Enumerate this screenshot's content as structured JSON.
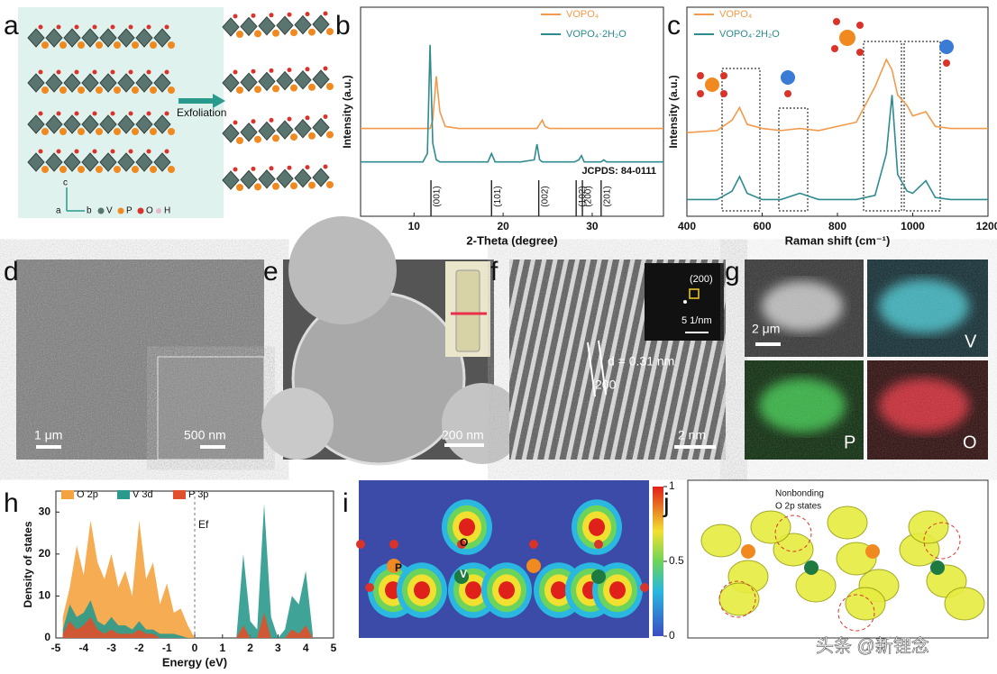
{
  "panels": {
    "a": {
      "letter": "a",
      "arrow": "Exfoliation",
      "axes": [
        "c",
        "a",
        "b"
      ],
      "legend": [
        "V",
        "P",
        "O",
        "H"
      ]
    },
    "b": {
      "letter": "b"
    },
    "c": {
      "letter": "c"
    },
    "d": {
      "letter": "d",
      "scale": "1 μm",
      "inset_scale": "500 nm"
    },
    "e": {
      "letter": "e",
      "scale": "200 nm"
    },
    "f": {
      "letter": "f",
      "fft_spot": "(200)",
      "fft_scale": "5 1/nm",
      "spacing": "d = 0.31 nm",
      "plane": "200",
      "scale": "2 nm"
    },
    "g": {
      "letter": "g",
      "scale": "2 μm",
      "maps": [
        "V",
        "P",
        "O"
      ]
    },
    "h": {
      "letter": "h"
    },
    "i": {
      "letter": "i",
      "atoms": [
        "P",
        "V",
        "O"
      ],
      "colorbar": {
        "ticks": [
          1,
          0.5,
          0
        ]
      }
    },
    "j": {
      "letter": "j",
      "note": [
        "Nonbonding",
        "O 2p states"
      ]
    }
  },
  "chart_data": [
    {
      "type": "line",
      "xlabel": "2-Theta (degree)",
      "ylabel": "Intensity (a.u.)",
      "xlim": [
        4,
        38
      ],
      "xticks": [
        10,
        20,
        30
      ],
      "ylim": [
        0,
        100
      ],
      "x": [
        4,
        10,
        11,
        11.5,
        11.8,
        12.1,
        12.5,
        12.9,
        13.5,
        15,
        18.3,
        18.7,
        19.1,
        22,
        23.5,
        23.8,
        24.1,
        24.4,
        24.7,
        25.2,
        28,
        28.5,
        28.8,
        29.1,
        31,
        31.3,
        31.6,
        38
      ],
      "series": [
        {
          "name": "VOPO₄",
          "color": "#f39a4a",
          "values": [
            42,
            42,
            42,
            42,
            42,
            46,
            67,
            50,
            43,
            42,
            42,
            42,
            42,
            42,
            42,
            42,
            44,
            46,
            43,
            42,
            42,
            42,
            42,
            42,
            42,
            42,
            42,
            42
          ]
        },
        {
          "name": "VOPO₄·2H₂O",
          "color": "#2e8b8f",
          "values": [
            26,
            26,
            26,
            30,
            82,
            35,
            27,
            26,
            26,
            26,
            26,
            30,
            26,
            26,
            27,
            34.5,
            27,
            26,
            26,
            26,
            26,
            27,
            29,
            26,
            26,
            27,
            26,
            26
          ]
        }
      ],
      "reference": {
        "label": "JCPDS: 84-0111",
        "positions": [
          11.9,
          18.7,
          24,
          28.2,
          28.9,
          31
        ],
        "labels": [
          "(001)",
          "(101)",
          "(002)",
          "(102)",
          "(200)",
          "(201)"
        ]
      }
    },
    {
      "type": "line",
      "xlabel": "Raman shift (cm⁻¹)",
      "ylabel": "Intensity (a.u.)",
      "xlim": [
        400,
        1200
      ],
      "xticks": [
        400,
        600,
        800,
        1000,
        1200
      ],
      "ylim": [
        0,
        100
      ],
      "x": [
        400,
        480,
        520,
        540,
        560,
        600,
        650,
        700,
        750,
        850,
        900,
        930,
        945,
        960,
        985,
        1000,
        1035,
        1060,
        1100,
        1200
      ],
      "series": [
        {
          "name": "VOPO₄",
          "color": "#f39a4a",
          "values": [
            40,
            41,
            46,
            52,
            44,
            42,
            41,
            42,
            41,
            45,
            62,
            75,
            70,
            58,
            53,
            48,
            50,
            43,
            42,
            42
          ]
        },
        {
          "name": "VOPO₄·2H₂O",
          "color": "#2e8b8f",
          "values": [
            8,
            8,
            12,
            19,
            11,
            8,
            8,
            11,
            8,
            8,
            10,
            30,
            58,
            20,
            12,
            11,
            17,
            9,
            8,
            8
          ]
        }
      ]
    },
    {
      "type": "area",
      "xlabel": "Energy (eV)",
      "ylabel": "Density of states",
      "annotation": "Ef",
      "xlim": [
        -5,
        5
      ],
      "xticks": [
        -5,
        -4,
        -3,
        -2,
        -1,
        0,
        1,
        2,
        3,
        4,
        5
      ],
      "ylim": [
        0,
        35
      ],
      "yticks": [
        0,
        10,
        20,
        30
      ],
      "x": [
        -4.75,
        -4.5,
        -4.25,
        -4,
        -3.75,
        -3.5,
        -3.25,
        -3,
        -2.75,
        -2.5,
        -2.25,
        -2,
        -1.75,
        -1.5,
        -1.25,
        -1,
        -0.75,
        -0.5,
        -0.25,
        0,
        0.25,
        0.5,
        0.75,
        1,
        1.25,
        1.5,
        1.75,
        2,
        2.25,
        2.5,
        2.75,
        3,
        3.25,
        3.5,
        3.75,
        4,
        4.25
      ],
      "series": [
        {
          "name": "O 2p",
          "color": "#f4a340",
          "values": [
            5,
            12,
            22,
            15,
            28,
            18,
            14,
            20,
            12,
            16,
            10,
            28,
            14,
            18,
            8,
            13,
            6,
            7,
            3,
            0,
            0,
            0,
            0,
            0,
            0,
            0,
            0,
            0,
            0,
            0,
            0,
            0,
            0,
            0,
            0,
            0,
            0
          ]
        },
        {
          "name": "V 3d",
          "color": "#2a9a8c",
          "values": [
            2,
            8,
            5,
            6,
            9,
            4,
            3,
            5,
            3,
            3,
            2,
            4,
            2,
            2,
            1,
            1,
            1,
            0.5,
            0,
            0,
            0,
            0,
            0,
            0,
            0,
            0,
            20,
            4,
            2,
            32,
            5,
            0,
            2,
            10,
            8,
            16,
            1
          ]
        },
        {
          "name": "P 3p",
          "color": "#e0502a",
          "values": [
            1,
            4,
            2,
            3,
            5,
            2,
            1,
            2,
            1,
            1,
            1,
            2,
            1,
            1,
            0,
            0,
            0,
            0,
            0,
            0,
            0,
            0,
            0,
            0,
            0,
            0,
            3,
            0,
            0,
            6,
            0,
            0,
            0,
            2,
            1,
            3,
            0
          ]
        }
      ]
    }
  ],
  "watermark": "头条 @新锂念"
}
